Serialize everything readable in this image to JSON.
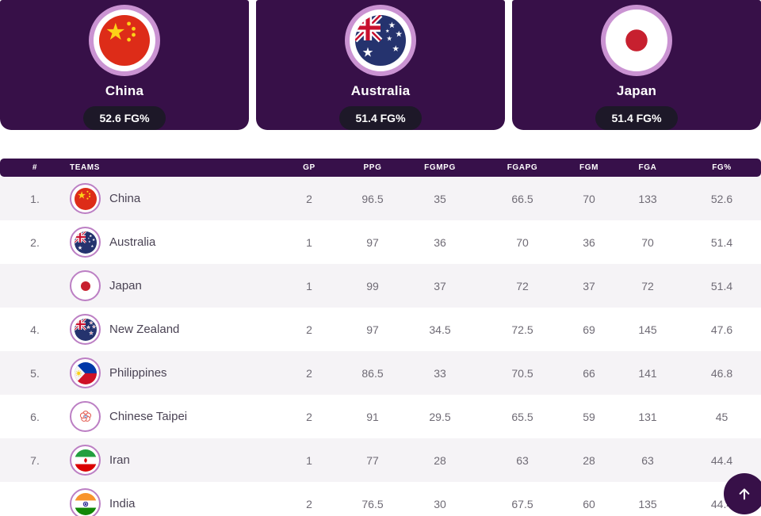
{
  "colors": {
    "card_bg": "#371048",
    "pill_bg": "#1d1828",
    "ring_outer": "#ca93d2",
    "table_header_bg": "#37104a",
    "row_alt_bg": "#f5f3f6",
    "accent_ring": "#bc7fc4"
  },
  "leaders": [
    {
      "name": "China",
      "stat": "52.6 FG%",
      "flag": "china"
    },
    {
      "name": "Australia",
      "stat": "51.4 FG%",
      "flag": "australia"
    },
    {
      "name": "Japan",
      "stat": "51.4 FG%",
      "flag": "japan"
    }
  ],
  "table": {
    "headers": [
      "#",
      "TEAMS",
      "GP",
      "PPG",
      "FGMPG",
      "FGAPG",
      "FGM",
      "FGA",
      "FG%"
    ],
    "rows": [
      {
        "rank": "1.",
        "team": "China",
        "flag": "china",
        "stats": [
          "2",
          "96.5",
          "35",
          "66.5",
          "70",
          "133",
          "52.6"
        ]
      },
      {
        "rank": "2.",
        "team": "Australia",
        "flag": "australia",
        "stats": [
          "1",
          "97",
          "36",
          "70",
          "36",
          "70",
          "51.4"
        ]
      },
      {
        "rank": "",
        "team": "Japan",
        "flag": "japan",
        "stats": [
          "1",
          "99",
          "37",
          "72",
          "37",
          "72",
          "51.4"
        ]
      },
      {
        "rank": "4.",
        "team": "New Zealand",
        "flag": "nz",
        "stats": [
          "2",
          "97",
          "34.5",
          "72.5",
          "69",
          "145",
          "47.6"
        ]
      },
      {
        "rank": "5.",
        "team": "Philippines",
        "flag": "philippines",
        "stats": [
          "2",
          "86.5",
          "33",
          "70.5",
          "66",
          "141",
          "46.8"
        ]
      },
      {
        "rank": "6.",
        "team": "Chinese Taipei",
        "flag": "taipei",
        "stats": [
          "2",
          "91",
          "29.5",
          "65.5",
          "59",
          "131",
          "45"
        ]
      },
      {
        "rank": "7.",
        "team": "Iran",
        "flag": "iran",
        "stats": [
          "1",
          "77",
          "28",
          "63",
          "28",
          "63",
          "44.4"
        ]
      },
      {
        "rank": "",
        "team": "India",
        "flag": "india",
        "stats": [
          "2",
          "76.5",
          "30",
          "67.5",
          "60",
          "135",
          "44.4"
        ]
      }
    ]
  },
  "scroll_to_top": {
    "icon": "up-arrow"
  }
}
